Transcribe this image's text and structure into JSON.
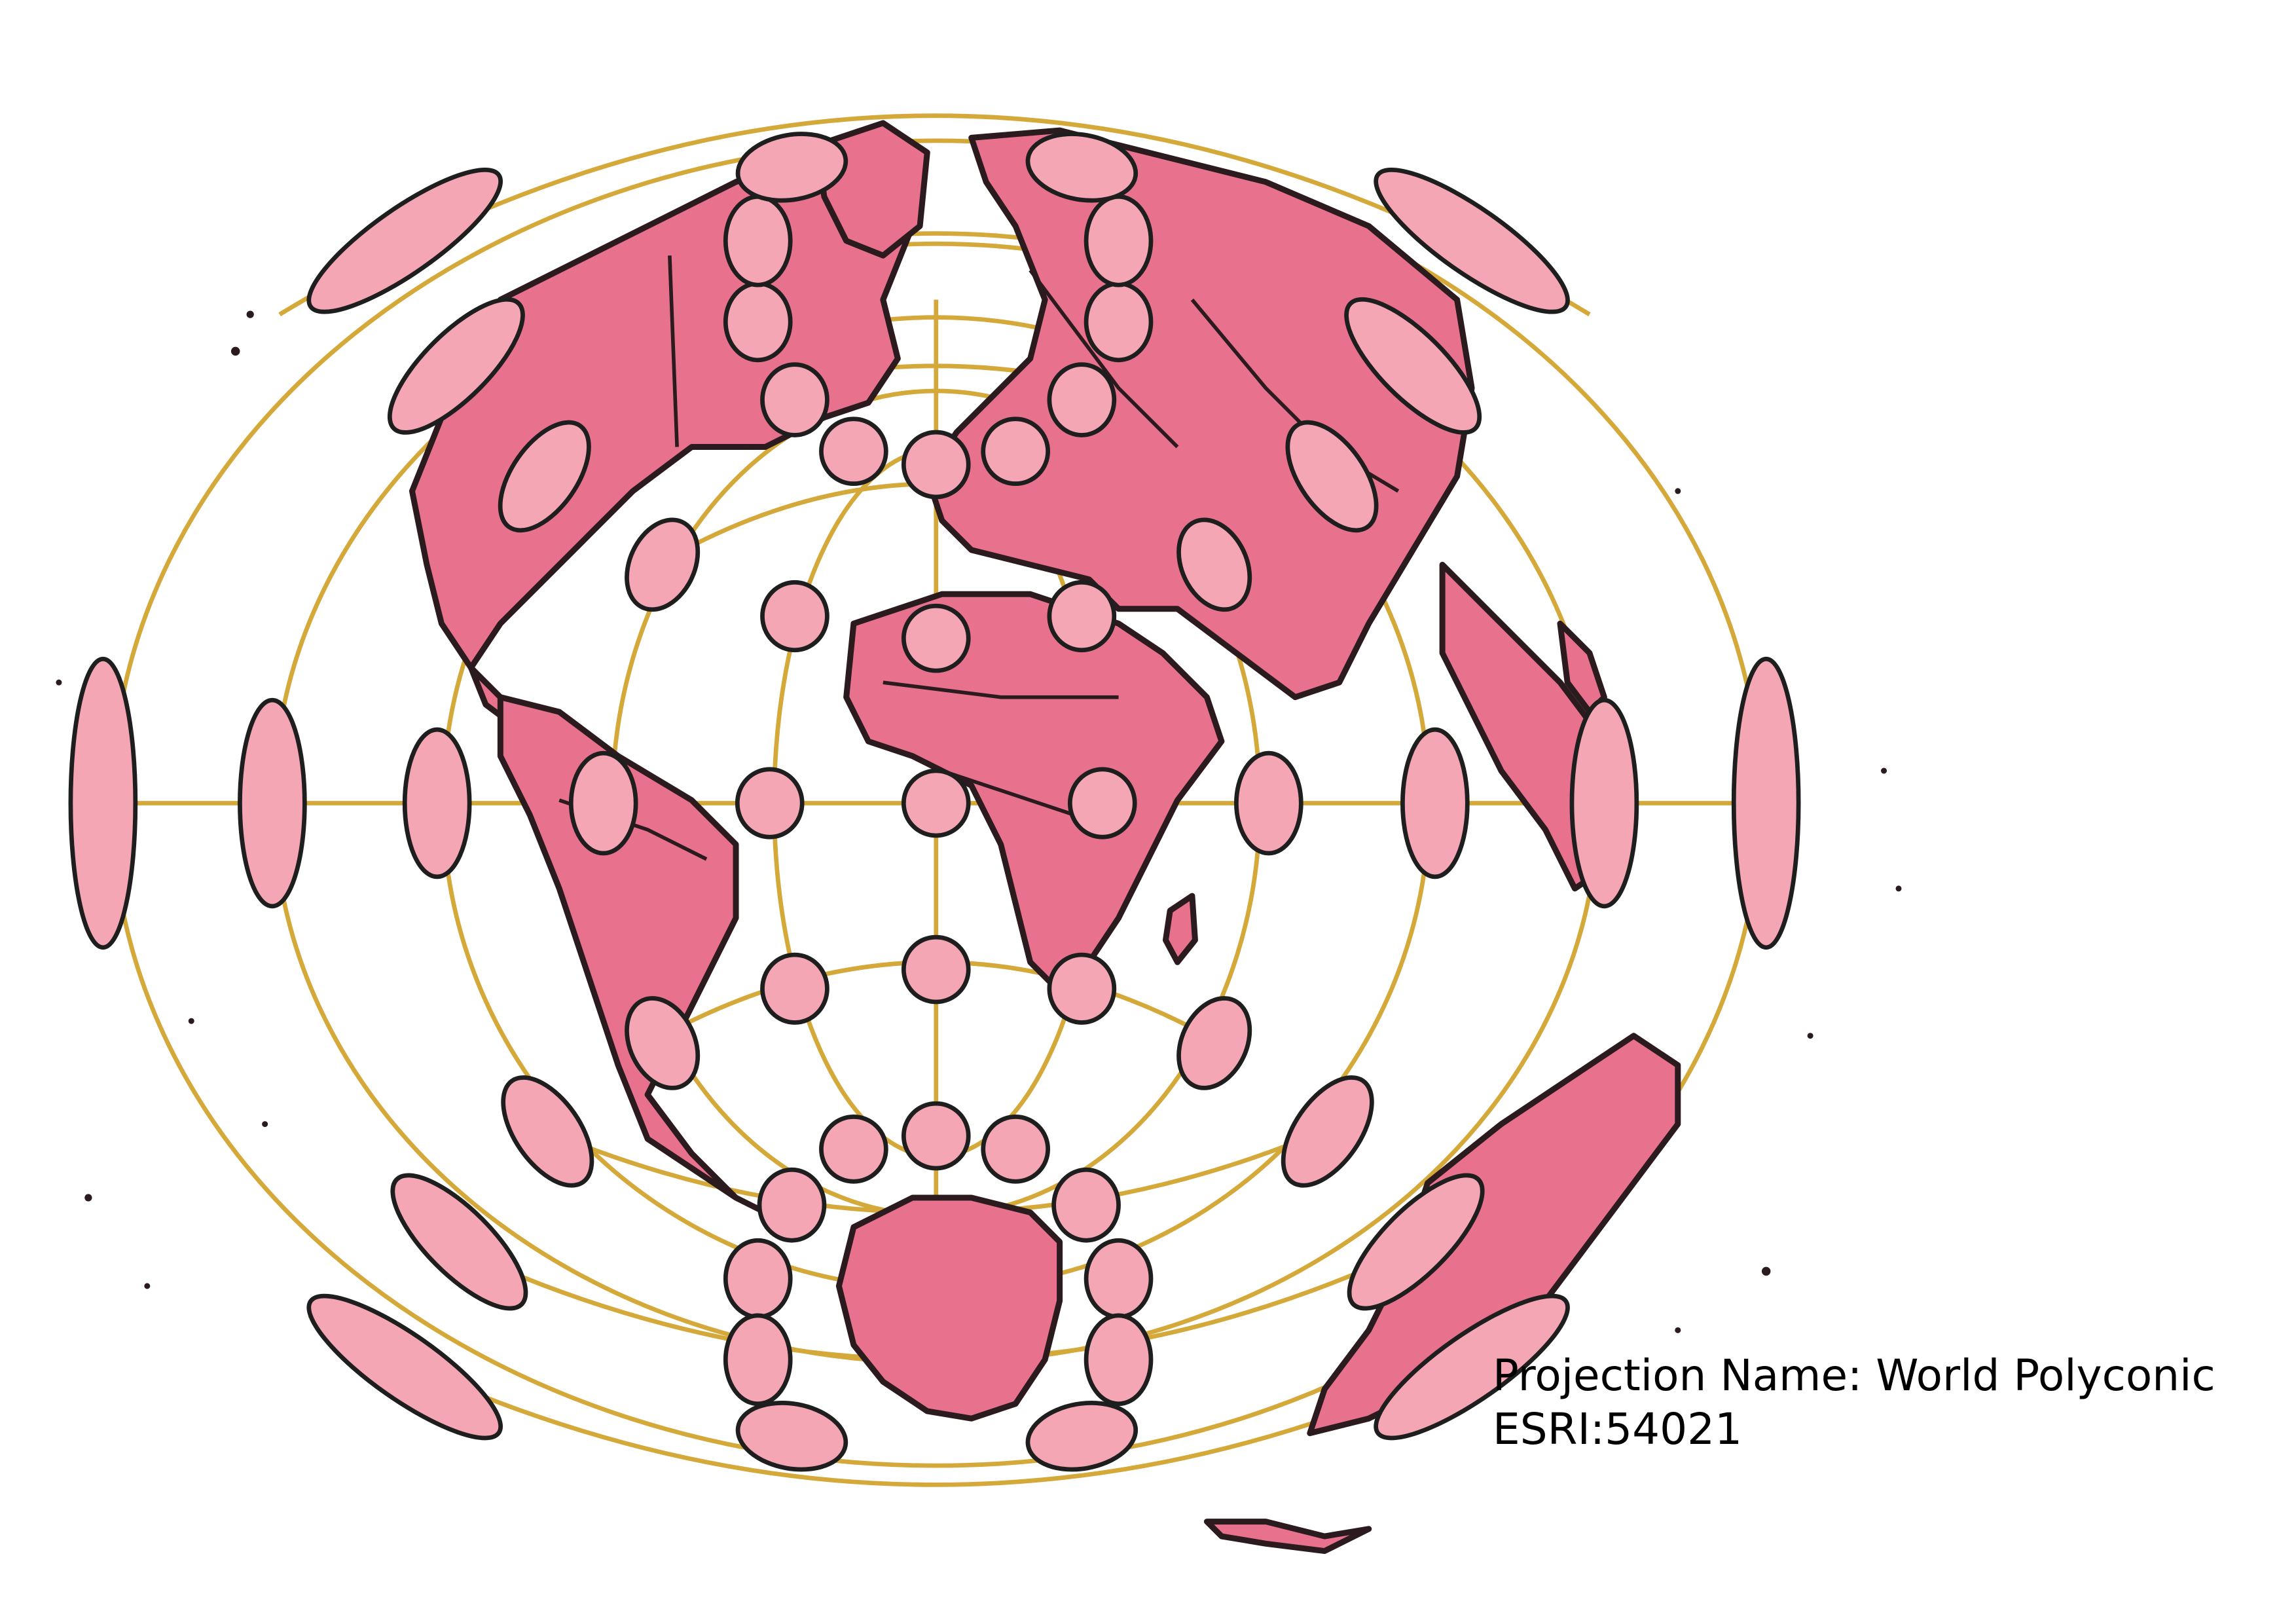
{
  "caption": {
    "projection_name": "Projection Name: World Polyconic",
    "projection_code": "ESRI:54021"
  },
  "colors": {
    "land": "#e8728e",
    "tissot_indicatrix": "#f4a6b4",
    "graticule": "#d4a93a",
    "outline": "#2b1a1e",
    "background": "#ffffff"
  }
}
